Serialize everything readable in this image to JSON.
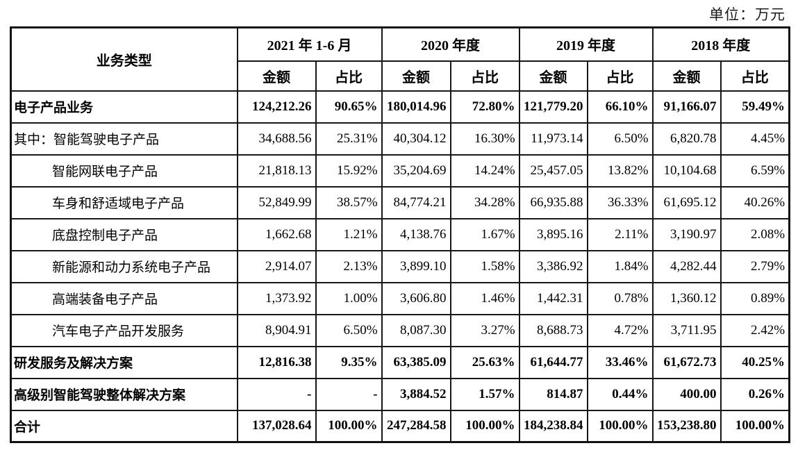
{
  "unit_label": "单位：万元",
  "colors": {
    "text": "#000000",
    "border": "#161616",
    "background": "#ffffff"
  },
  "table": {
    "corner_header": "业务类型",
    "period_headers": [
      "2021 年 1-6 月",
      "2020 年度",
      "2019 年度",
      "2018 年度"
    ],
    "sub_headers": {
      "amount": "金额",
      "ratio": "占比"
    },
    "rows": [
      {
        "label": "电子产品业务",
        "bold": true,
        "indent": 0,
        "values": [
          "124,212.26",
          "90.65%",
          "180,014.96",
          "72.80%",
          "121,779.20",
          "66.10%",
          "91,166.07",
          "59.49%"
        ]
      },
      {
        "label": "其中：智能驾驶电子产品",
        "bold": false,
        "indent": 0,
        "values": [
          "34,688.56",
          "25.31%",
          "40,304.12",
          "16.30%",
          "11,973.14",
          "6.50%",
          "6,820.78",
          "4.45%"
        ]
      },
      {
        "label": "智能网联电子产品",
        "bold": false,
        "indent": 1,
        "values": [
          "21,818.13",
          "15.92%",
          "35,204.69",
          "14.24%",
          "25,457.05",
          "13.82%",
          "10,104.68",
          "6.59%"
        ]
      },
      {
        "label": "车身和舒适域电子产品",
        "bold": false,
        "indent": 1,
        "values": [
          "52,849.99",
          "38.57%",
          "84,774.21",
          "34.28%",
          "66,935.88",
          "36.33%",
          "61,695.12",
          "40.26%"
        ]
      },
      {
        "label": "底盘控制电子产品",
        "bold": false,
        "indent": 1,
        "values": [
          "1,662.68",
          "1.21%",
          "4,138.76",
          "1.67%",
          "3,895.16",
          "2.11%",
          "3,190.97",
          "2.08%"
        ]
      },
      {
        "label": "新能源和动力系统电子产品",
        "bold": false,
        "indent": 1,
        "values": [
          "2,914.07",
          "2.13%",
          "3,899.10",
          "1.58%",
          "3,386.92",
          "1.84%",
          "4,282.44",
          "2.79%"
        ]
      },
      {
        "label": "高端装备电子产品",
        "bold": false,
        "indent": 1,
        "values": [
          "1,373.92",
          "1.00%",
          "3,606.80",
          "1.46%",
          "1,442.31",
          "0.78%",
          "1,360.12",
          "0.89%"
        ]
      },
      {
        "label": "汽车电子产品开发服务",
        "bold": false,
        "indent": 1,
        "values": [
          "8,904.91",
          "6.50%",
          "8,087.30",
          "3.27%",
          "8,688.73",
          "4.72%",
          "3,711.95",
          "2.42%"
        ]
      },
      {
        "label": "研发服务及解决方案",
        "bold": true,
        "indent": 0,
        "values": [
          "12,816.38",
          "9.35%",
          "63,385.09",
          "25.63%",
          "61,644.77",
          "33.46%",
          "61,672.73",
          "40.25%"
        ]
      },
      {
        "label": "高级别智能驾驶整体解决方案",
        "bold": true,
        "indent": 0,
        "values": [
          "-",
          "-",
          "3,884.52",
          "1.57%",
          "814.87",
          "0.44%",
          "400.00",
          "0.26%"
        ]
      },
      {
        "label": "合计",
        "bold": true,
        "indent": 0,
        "values": [
          "137,028.64",
          "100.00%",
          "247,284.58",
          "100.00%",
          "184,238.84",
          "100.00%",
          "153,238.80",
          "100.00%"
        ]
      }
    ]
  }
}
